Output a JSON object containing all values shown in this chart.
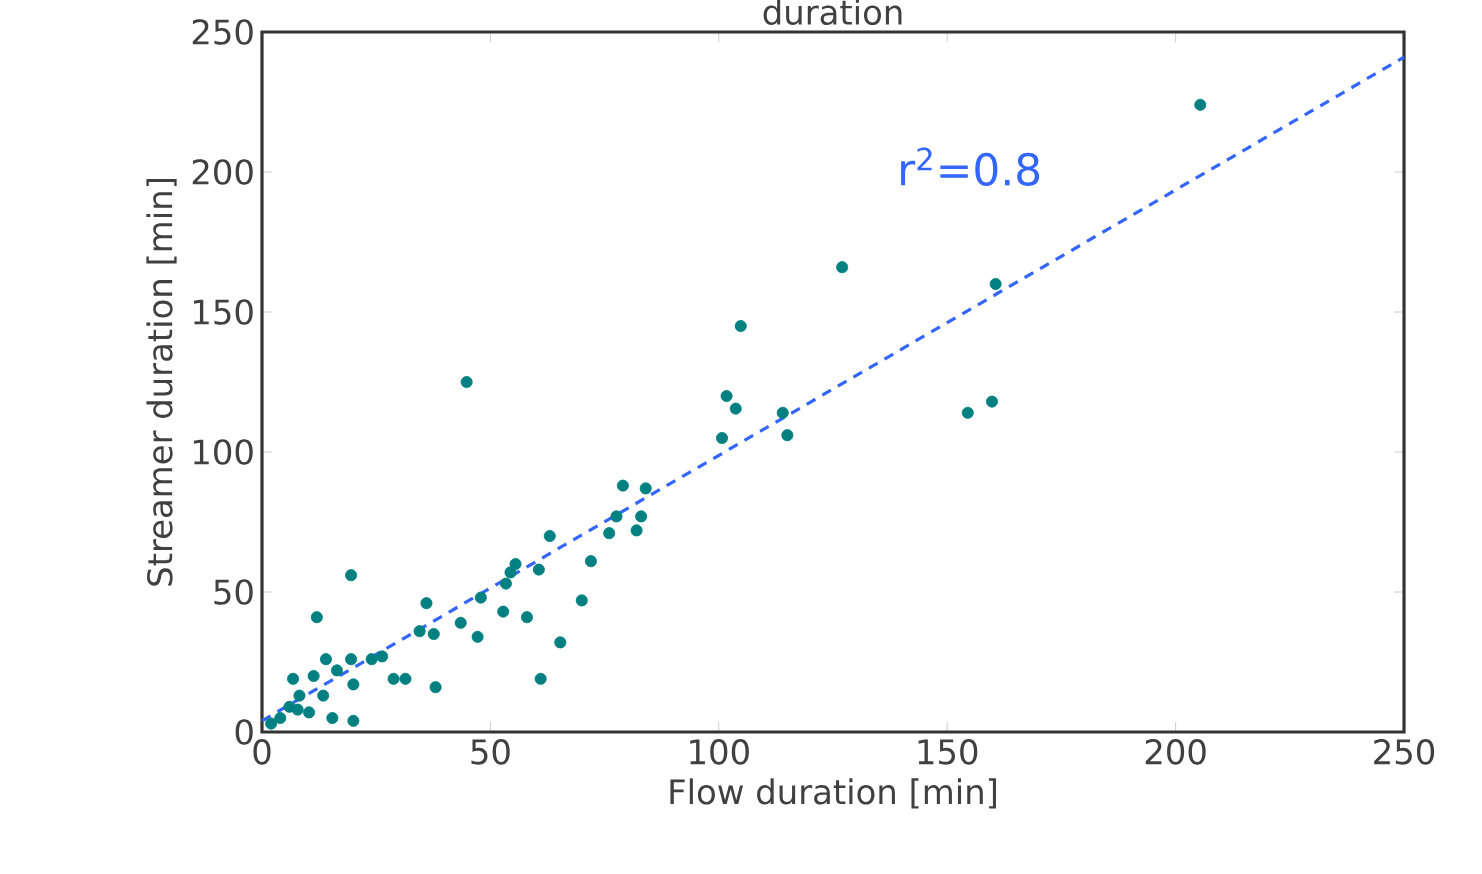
{
  "chart_data": {
    "type": "scatter",
    "title": "duration",
    "xlabel": "Flow duration [min]",
    "ylabel": "Streamer duration [min]",
    "xlim": [
      0,
      250
    ],
    "ylim": [
      0,
      250
    ],
    "xticks": [
      0,
      50,
      100,
      150,
      200,
      250
    ],
    "yticks": [
      0,
      50,
      100,
      150,
      200,
      250
    ],
    "annotations": [
      "r$^{2}$=0.8"
    ],
    "series": [
      {
        "color": "#008080",
        "marker": "circle",
        "x": [
          205.4,
          127,
          104.8,
          160.6,
          44.8,
          101.7,
          103.7,
          154.5,
          159.8,
          114,
          115,
          100.7,
          79,
          84,
          77.6,
          76,
          82,
          83,
          63,
          72,
          70,
          55.5,
          54.4,
          60.6,
          53.4,
          47.9,
          52.8,
          58,
          65.3,
          61,
          43.5,
          47.2,
          36,
          34.5,
          37.6,
          38,
          28.8,
          31.4,
          19.5,
          12,
          24,
          26.3,
          19.5,
          14,
          16.4,
          11.3,
          6.8,
          20,
          13.4,
          8.2,
          10.3,
          15.4,
          20,
          4,
          6,
          7.8,
          2
        ],
        "values": [
          224,
          166,
          145,
          160,
          125,
          120,
          115.5,
          114,
          118,
          114,
          106,
          105,
          88,
          87,
          77,
          71,
          72,
          77,
          70,
          61,
          47,
          60,
          57,
          58,
          53,
          48,
          43,
          41,
          32,
          19,
          39,
          34,
          46,
          36,
          35,
          16,
          19,
          19,
          56,
          41,
          26,
          27,
          26,
          26,
          22,
          20,
          19,
          17,
          13,
          13,
          7,
          5,
          4,
          5,
          9,
          8,
          3
        ]
      },
      {
        "type": "line",
        "color": "#3366ff",
        "line_style": "dashed",
        "marker": "none",
        "x": [
          0,
          250
        ],
        "values": [
          4,
          241
        ]
      }
    ]
  }
}
